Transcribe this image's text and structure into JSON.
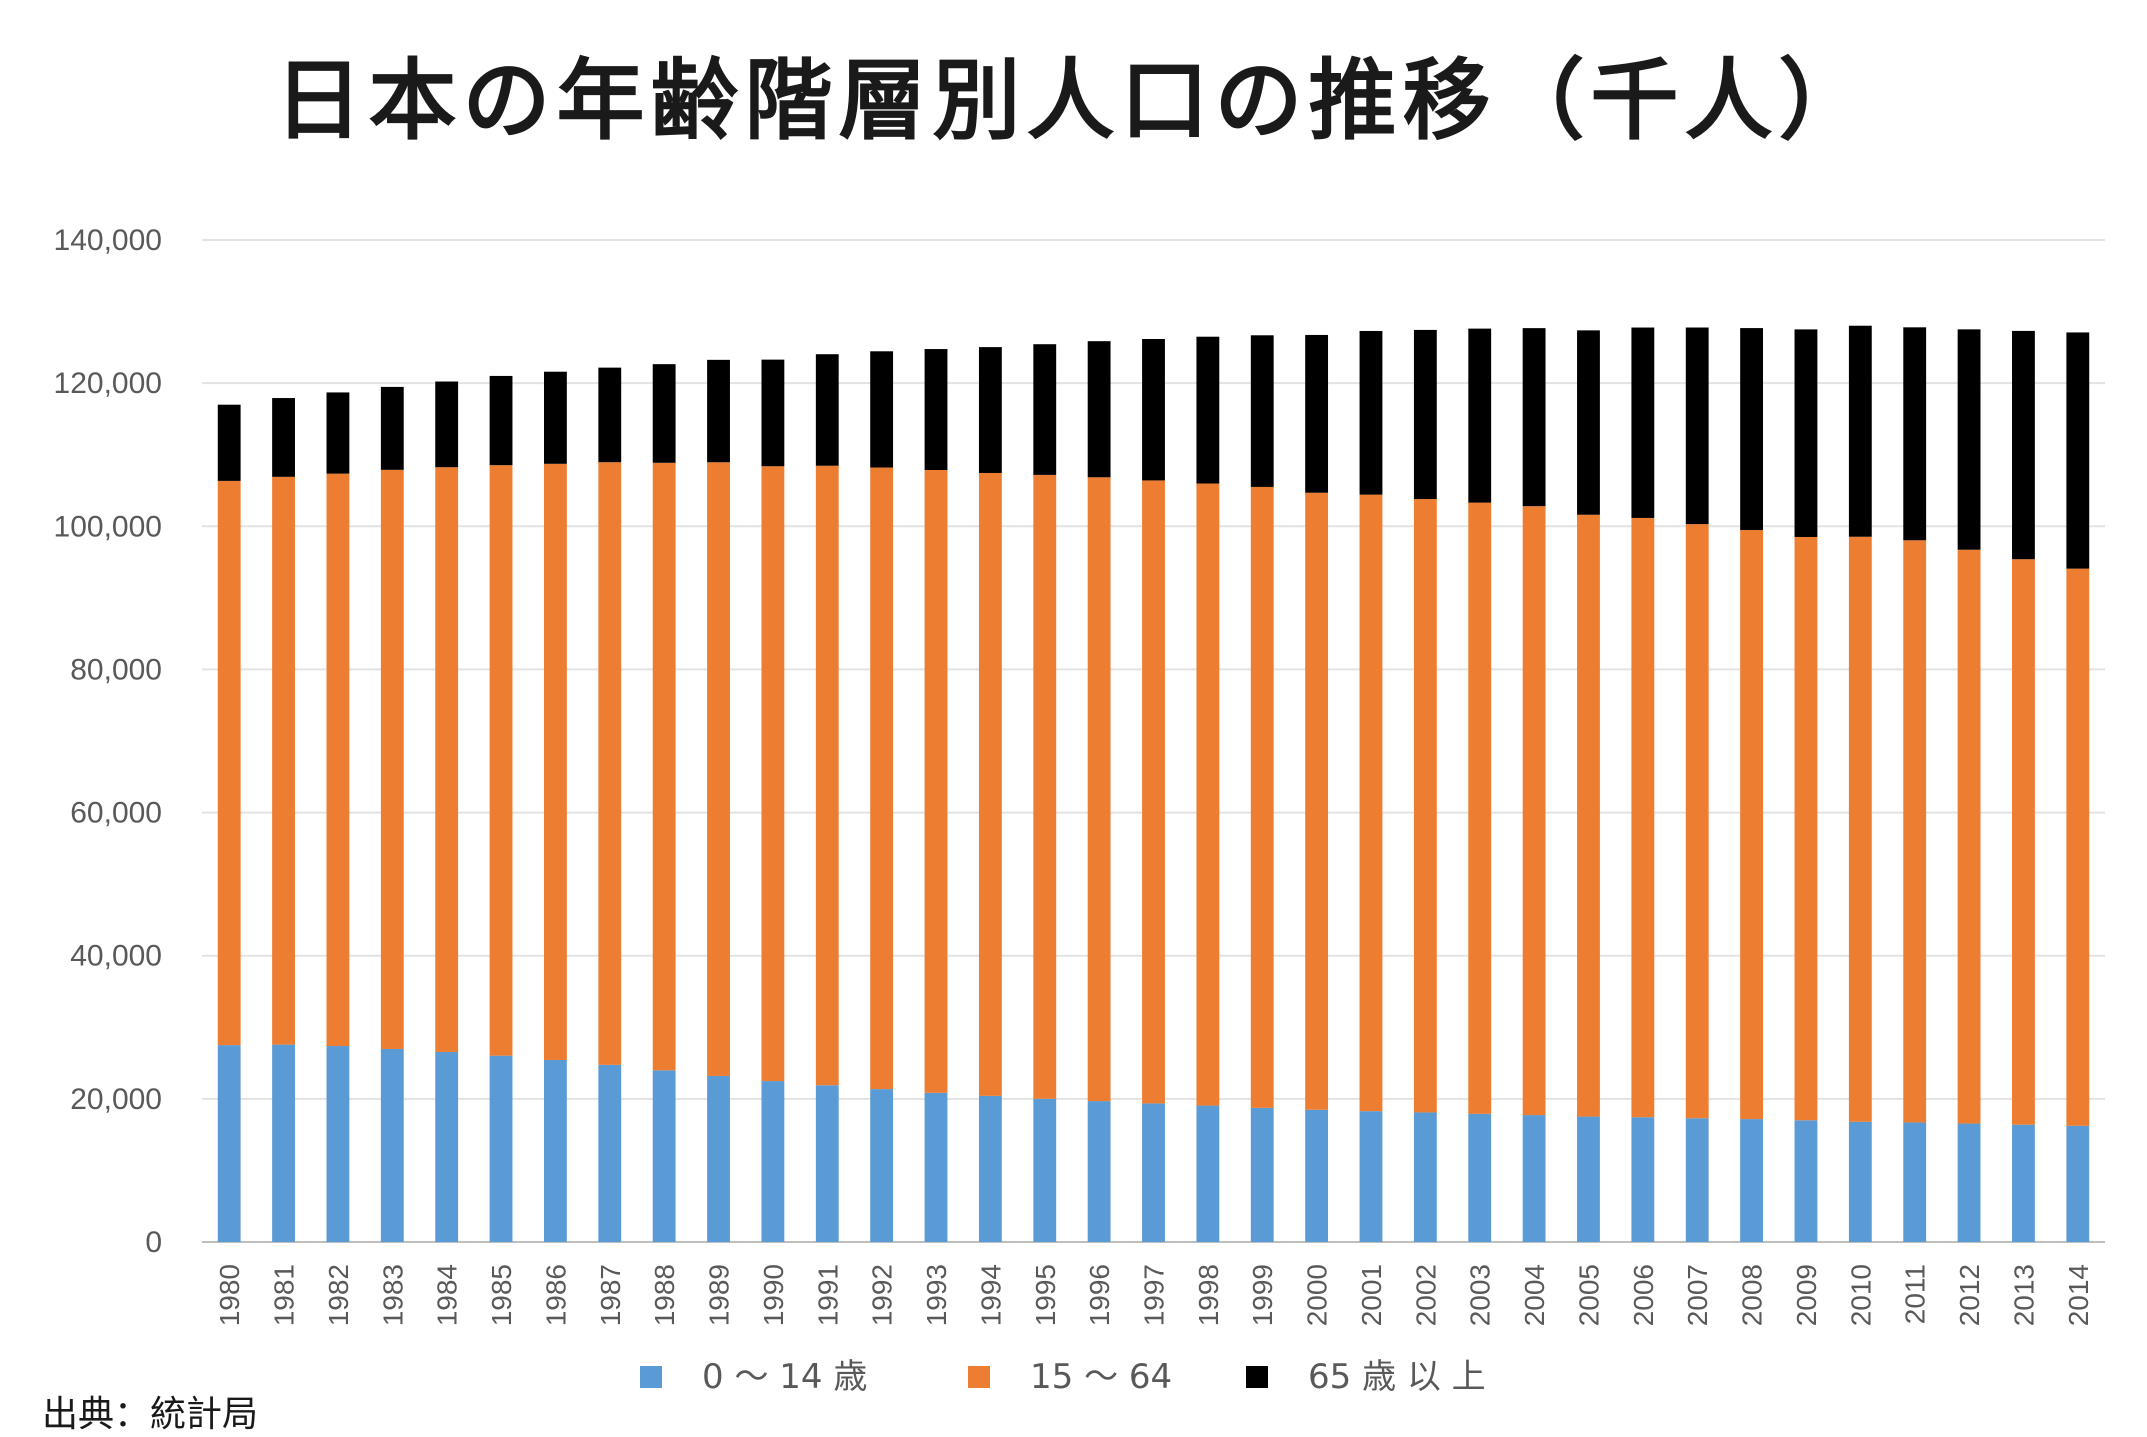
{
  "chart_data": {
    "type": "bar",
    "stacked": true,
    "title": "日本の年齢階層別人口の推移（千人）",
    "xlabel": "",
    "ylabel": "",
    "ylim": [
      0,
      140000
    ],
    "yticks": [
      0,
      20000,
      40000,
      60000,
      80000,
      100000,
      120000,
      140000
    ],
    "ytick_labels": [
      "0",
      "20,000",
      "40,000",
      "60,000",
      "80,000",
      "100,000",
      "120,000",
      "140,000"
    ],
    "grid": true,
    "legend_position": "bottom",
    "categories": [
      "1980",
      "1981",
      "1982",
      "1983",
      "1984",
      "1985",
      "1986",
      "1987",
      "1988",
      "1989",
      "1990",
      "1991",
      "1992",
      "1993",
      "1994",
      "1995",
      "1996",
      "1997",
      "1998",
      "1999",
      "2000",
      "2001",
      "2002",
      "2003",
      "2004",
      "2005",
      "2006",
      "2007",
      "2008",
      "2009",
      "2010",
      "2011",
      "2012",
      "2013",
      "2014"
    ],
    "series": [
      {
        "name": "0 ～ 14 歳",
        "color": "#5b9bd5",
        "values": [
          27507,
          27576,
          27380,
          26969,
          26552,
          26033,
          25434,
          24753,
          23985,
          23201,
          22486,
          21904,
          21364,
          20841,
          20415,
          20014,
          19686,
          19366,
          19059,
          18742,
          18472,
          18283,
          18102,
          17905,
          17734,
          17521,
          17435,
          17293,
          17176,
          17011,
          16803,
          16705,
          16547,
          16390,
          16233
        ]
      },
      {
        "name": "15 ～ 64",
        "color": "#ed7d31",
        "values": [
          78835,
          79333,
          79975,
          80916,
          81702,
          82506,
          83295,
          84201,
          84883,
          85745,
          85904,
          86557,
          86845,
          87023,
          87034,
          87165,
          87161,
          87042,
          86920,
          86758,
          86220,
          86139,
          85706,
          85404,
          85077,
          84092,
          83731,
          83015,
          82300,
          81493,
          81735,
          81342,
          80175,
          79010,
          77850
        ]
      },
      {
        "name": "65 歳 以 上",
        "color": "#000000",
        "values": [
          10647,
          11008,
          11347,
          11588,
          11973,
          12468,
          12870,
          13214,
          13785,
          14309,
          14895,
          15582,
          16242,
          16900,
          17585,
          18261,
          19017,
          19758,
          20508,
          21186,
          22041,
          22869,
          23628,
          24311,
          24876,
          25761,
          26604,
          27464,
          28216,
          29005,
          29484,
          29752,
          30793,
          31898,
          33000
        ]
      }
    ]
  },
  "source_note": "出典：統計局"
}
